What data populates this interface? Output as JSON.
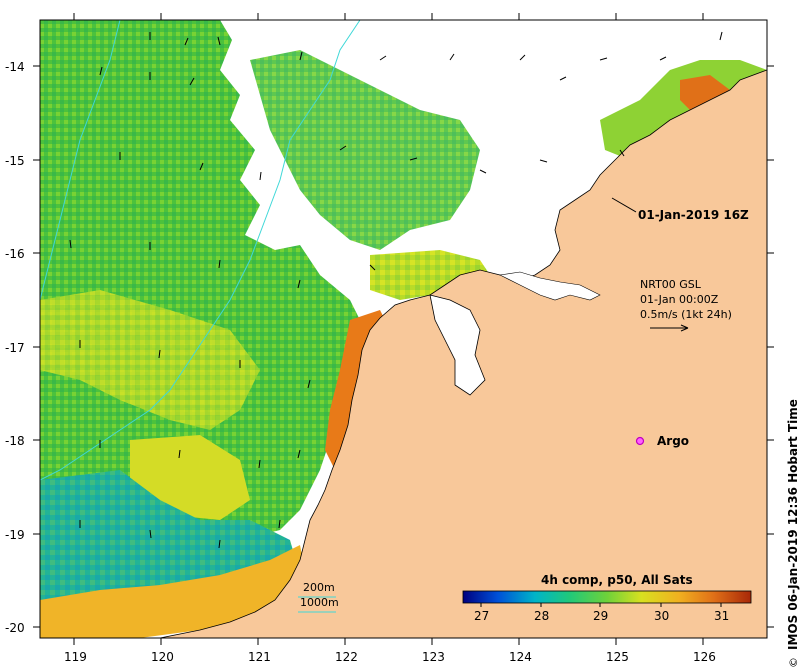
{
  "map": {
    "timestamp_label": "01-Jan-2019 16Z",
    "current_info": {
      "line1": "NRT00 GSL",
      "line2": "01-Jan 00:00Z",
      "line3": "0.5m/s (1kt 24h)"
    },
    "argo_label": "Argo",
    "contours": {
      "label_200": "200m",
      "label_1000": "1000m"
    },
    "colorbar": {
      "title": "4h comp, p50, All Sats",
      "ticks": [
        "27",
        "28",
        "29",
        "30",
        "31"
      ],
      "colors": [
        "#00007f",
        "#0050d8",
        "#00b4c8",
        "#20c87a",
        "#6ed23a",
        "#d8e020",
        "#f0b020",
        "#e07018",
        "#a82808"
      ]
    },
    "credit": "IMOS 06-Jan-2019 12:36 Hobart Time",
    "copyright_symbol": "©",
    "x_ticks": [
      "119",
      "120",
      "121",
      "122",
      "123",
      "124",
      "125",
      "126"
    ],
    "y_ticks": [
      "-14",
      "-15",
      "-16",
      "-17",
      "-18",
      "-19",
      "-20"
    ],
    "land_color": "#f8c89a",
    "no_data_color": "#ffffff"
  }
}
